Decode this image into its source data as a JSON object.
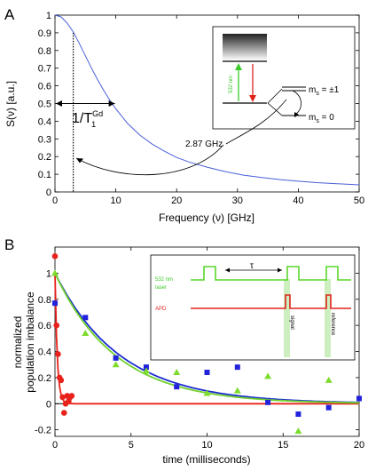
{
  "chart_data": [
    {
      "panel": "A",
      "type": "line",
      "xlabel": "Frequency (ν) [GHz]",
      "ylabel": "S(ν) [a.u.]",
      "xlim": [
        0,
        50
      ],
      "ylim": [
        0,
        1
      ],
      "xticks": [
        "0",
        "10",
        "20",
        "30",
        "40",
        "50"
      ],
      "yticks": [
        "0",
        "0.1",
        "0.2",
        "0.3",
        "0.4",
        "0.5",
        "0.6",
        "0.7",
        "0.8",
        "0.9",
        "1"
      ],
      "series": [
        {
          "color": "#4a5fd8",
          "x": [
            0,
            1,
            2,
            3,
            4,
            5,
            6,
            7,
            8,
            9,
            10,
            12,
            14,
            16,
            18,
            20,
            22,
            25,
            28,
            31,
            34,
            37,
            40,
            43,
            46,
            50
          ],
          "y": [
            1.0,
            0.99,
            0.955,
            0.905,
            0.84,
            0.77,
            0.7,
            0.635,
            0.575,
            0.52,
            0.47,
            0.385,
            0.32,
            0.27,
            0.23,
            0.195,
            0.17,
            0.14,
            0.115,
            0.095,
            0.082,
            0.07,
            0.061,
            0.053,
            0.047,
            0.04
          ]
        }
      ],
      "annotations": {
        "linewidth_label": "1/T",
        "linewidth_sup": "Gd",
        "linewidth_sub": "1",
        "linewidth_x": 3,
        "linewidth_arrow_y": 0.5,
        "splitting_label": "2.87 GHz",
        "laser_label": "532 nm",
        "ms1_label": "m",
        "ms1_sub": "s",
        "ms1_value": " = ±1",
        "ms0_label": "m",
        "ms0_sub": "s",
        "ms0_value": " = 0"
      }
    },
    {
      "panel": "B",
      "type": "scatter",
      "xlabel": "time (milliseconds)",
      "ylabel_line1": "normalized",
      "ylabel_line2": "population imbalance",
      "xlim": [
        0,
        20
      ],
      "ylim": [
        -0.25,
        1.2
      ],
      "xticks": [
        "0",
        "5",
        "10",
        "15",
        "20"
      ],
      "yticks": [
        "-0.2",
        "0",
        "0.2",
        "0.4",
        "0.6",
        "0.8",
        "1"
      ],
      "series": [
        {
          "marker": "circle",
          "color": "#e8221b",
          "x": [
            0.0,
            0.1,
            0.2,
            0.3,
            0.4,
            0.5,
            0.6,
            0.7,
            0.8,
            0.9,
            1.0,
            1.1
          ],
          "y": [
            1.13,
            0.6,
            0.38,
            0.2,
            0.18,
            0.05,
            -0.07,
            0.0,
            0.06,
            0.02,
            0.05,
            0.06
          ]
        },
        {
          "marker": "square",
          "color": "#2222dd",
          "x": [
            0,
            2,
            4,
            6,
            8,
            10,
            12,
            14,
            16,
            18,
            20
          ],
          "y": [
            0.77,
            0.66,
            0.35,
            0.28,
            0.13,
            0.24,
            0.28,
            0.01,
            -0.08,
            -0.03,
            0.04
          ]
        },
        {
          "marker": "triangle",
          "color": "#7edc2c",
          "x": [
            0,
            2,
            4,
            6,
            8,
            10,
            12,
            14,
            16,
            18
          ],
          "y": [
            1.0,
            0.54,
            0.3,
            0.25,
            0.24,
            0.08,
            0.1,
            0.21,
            -0.21,
            0.18
          ]
        }
      ],
      "fits": [
        {
          "color": "#e8221b",
          "amplitude": 1.0,
          "tau": 0.15
        },
        {
          "color": "#1a2bd0",
          "amplitude": 1.0,
          "tau": 4.3
        },
        {
          "color": "#6fd12a",
          "amplitude": 1.0,
          "tau": 4.0
        }
      ],
      "inset": {
        "laser_label_1": "532 nm",
        "laser_label_2": "laser",
        "apd_label": "APD",
        "tau_label": "τ",
        "signal_label": "signal",
        "reference_label": "reference"
      }
    }
  ],
  "panel_labels": {
    "a": "A",
    "b": "B"
  }
}
